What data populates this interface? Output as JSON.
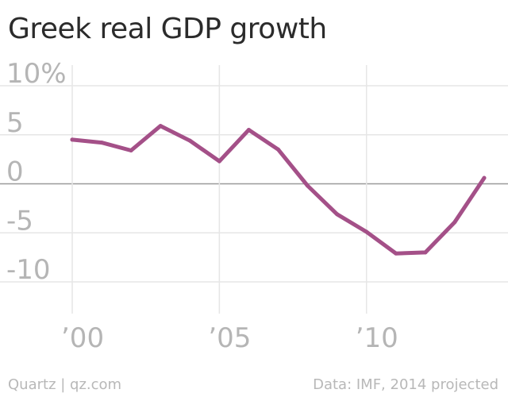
{
  "title": "Greek real GDP growth",
  "footer": {
    "credit": "Quartz | qz.com",
    "source": "Data: IMF, 2014 projected"
  },
  "colors": {
    "line": "#a45088",
    "grid": "#e6e6e6",
    "zero_line": "#9a9a9a",
    "tick_text": "#b5b5b5",
    "title_text": "#2b2b2b"
  },
  "chart_data": {
    "type": "line",
    "title": "Greek real GDP growth",
    "xlabel": "",
    "ylabel": "",
    "x": [
      2000,
      2001,
      2002,
      2003,
      2004,
      2005,
      2006,
      2007,
      2008,
      2009,
      2010,
      2011,
      2012,
      2013,
      2014
    ],
    "series": [
      {
        "values": [
          4.5,
          4.2,
          3.4,
          5.9,
          4.4,
          2.3,
          5.5,
          3.5,
          -0.2,
          -3.1,
          -4.9,
          -7.1,
          -7.0,
          -3.9,
          0.6
        ]
      }
    ],
    "xlim": [
      2000,
      2014
    ],
    "ylim": [
      -12,
      11
    ],
    "x_ticks": [
      2000,
      2005,
      2010
    ],
    "x_tick_labels": [
      "’00",
      "’05",
      "’10"
    ],
    "y_ticks": [
      10,
      5,
      0,
      -5,
      -10
    ],
    "y_tick_labels": [
      "10%",
      "5",
      "0",
      "-5",
      "-10"
    ],
    "grid": true,
    "legend": "none"
  }
}
